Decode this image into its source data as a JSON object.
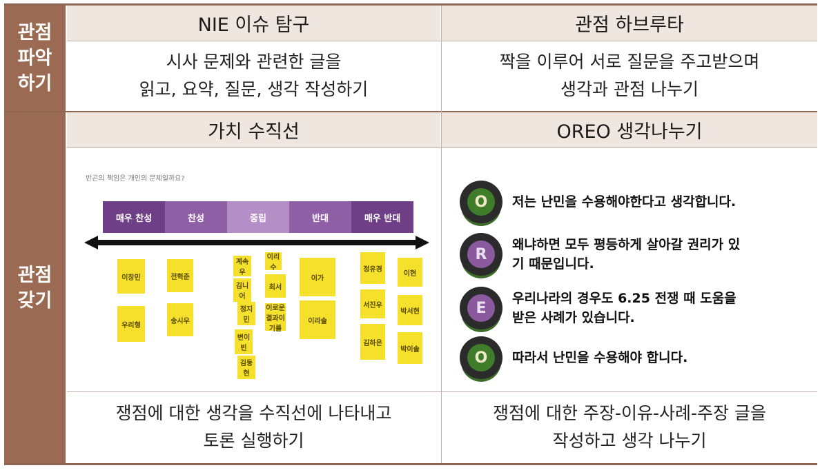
{
  "side": {
    "row1": [
      "관점",
      "파악",
      "하기"
    ],
    "row2": [
      "관점",
      "갖기"
    ]
  },
  "row1": {
    "left_header": "NIE 이슈 탐구",
    "right_header": "관점 하브루타",
    "left_body": [
      "시사 문제와 관련한 글을",
      "읽고, 요약, 질문, 생각 작성하기"
    ],
    "right_body": [
      "짝을 이루어 서로 질문을 주고받으며",
      "생각과 관점 나누기"
    ]
  },
  "row2": {
    "left_header": "가치 수직선",
    "right_header": "OREO 생각나누기",
    "left_caption": [
      "쟁점에 대한 생각을 수직선에 나타내고",
      "토론 실행하기"
    ],
    "right_caption": [
      "쟁점에 대한 주장-이유-사례-주장 글을",
      "작성하고 생각 나누기"
    ]
  },
  "value_line": {
    "question": "반곤의 책임은 개인의 문제일까요?",
    "bands": [
      {
        "label": "매우 찬성",
        "color": "#6e3f86"
      },
      {
        "label": "찬성",
        "color": "#8f5fa6"
      },
      {
        "label": "중립",
        "color": "#b48ec6"
      },
      {
        "label": "반대",
        "color": "#8f5fa6"
      },
      {
        "label": "매우 반대",
        "color": "#6e3f86"
      }
    ],
    "notes": [
      "이창민",
      "우리형",
      "전혁준",
      "송시우",
      "계속우",
      "김니어",
      "정지민",
      "변이빈",
      "김동현",
      "이리수",
      "최서",
      "이가",
      "이라솔",
      "정유경",
      "서진우",
      "김하은",
      "이현",
      "박서현",
      "박이솔",
      "이로운 결과이기를"
    ]
  },
  "oreo": {
    "items": [
      {
        "letter": "O",
        "color": "#3f7d2a",
        "text": [
          "저는 난민을 수용해야한다고 생각합니다."
        ]
      },
      {
        "letter": "R",
        "color": "#8b5a9e",
        "text": [
          "왜냐하면 모두 평등하게 살아갈 권리가 있",
          "기 때문입니다."
        ]
      },
      {
        "letter": "E",
        "color": "#8b5a9e",
        "text": [
          "우리나라의 경우도 6.25 전쟁 때 도움을",
          "받은 사례가 있습니다."
        ]
      },
      {
        "letter": "O",
        "color": "#3f7d2a",
        "text": [
          "따라서 난민을 수용해야 합니다."
        ]
      }
    ]
  }
}
